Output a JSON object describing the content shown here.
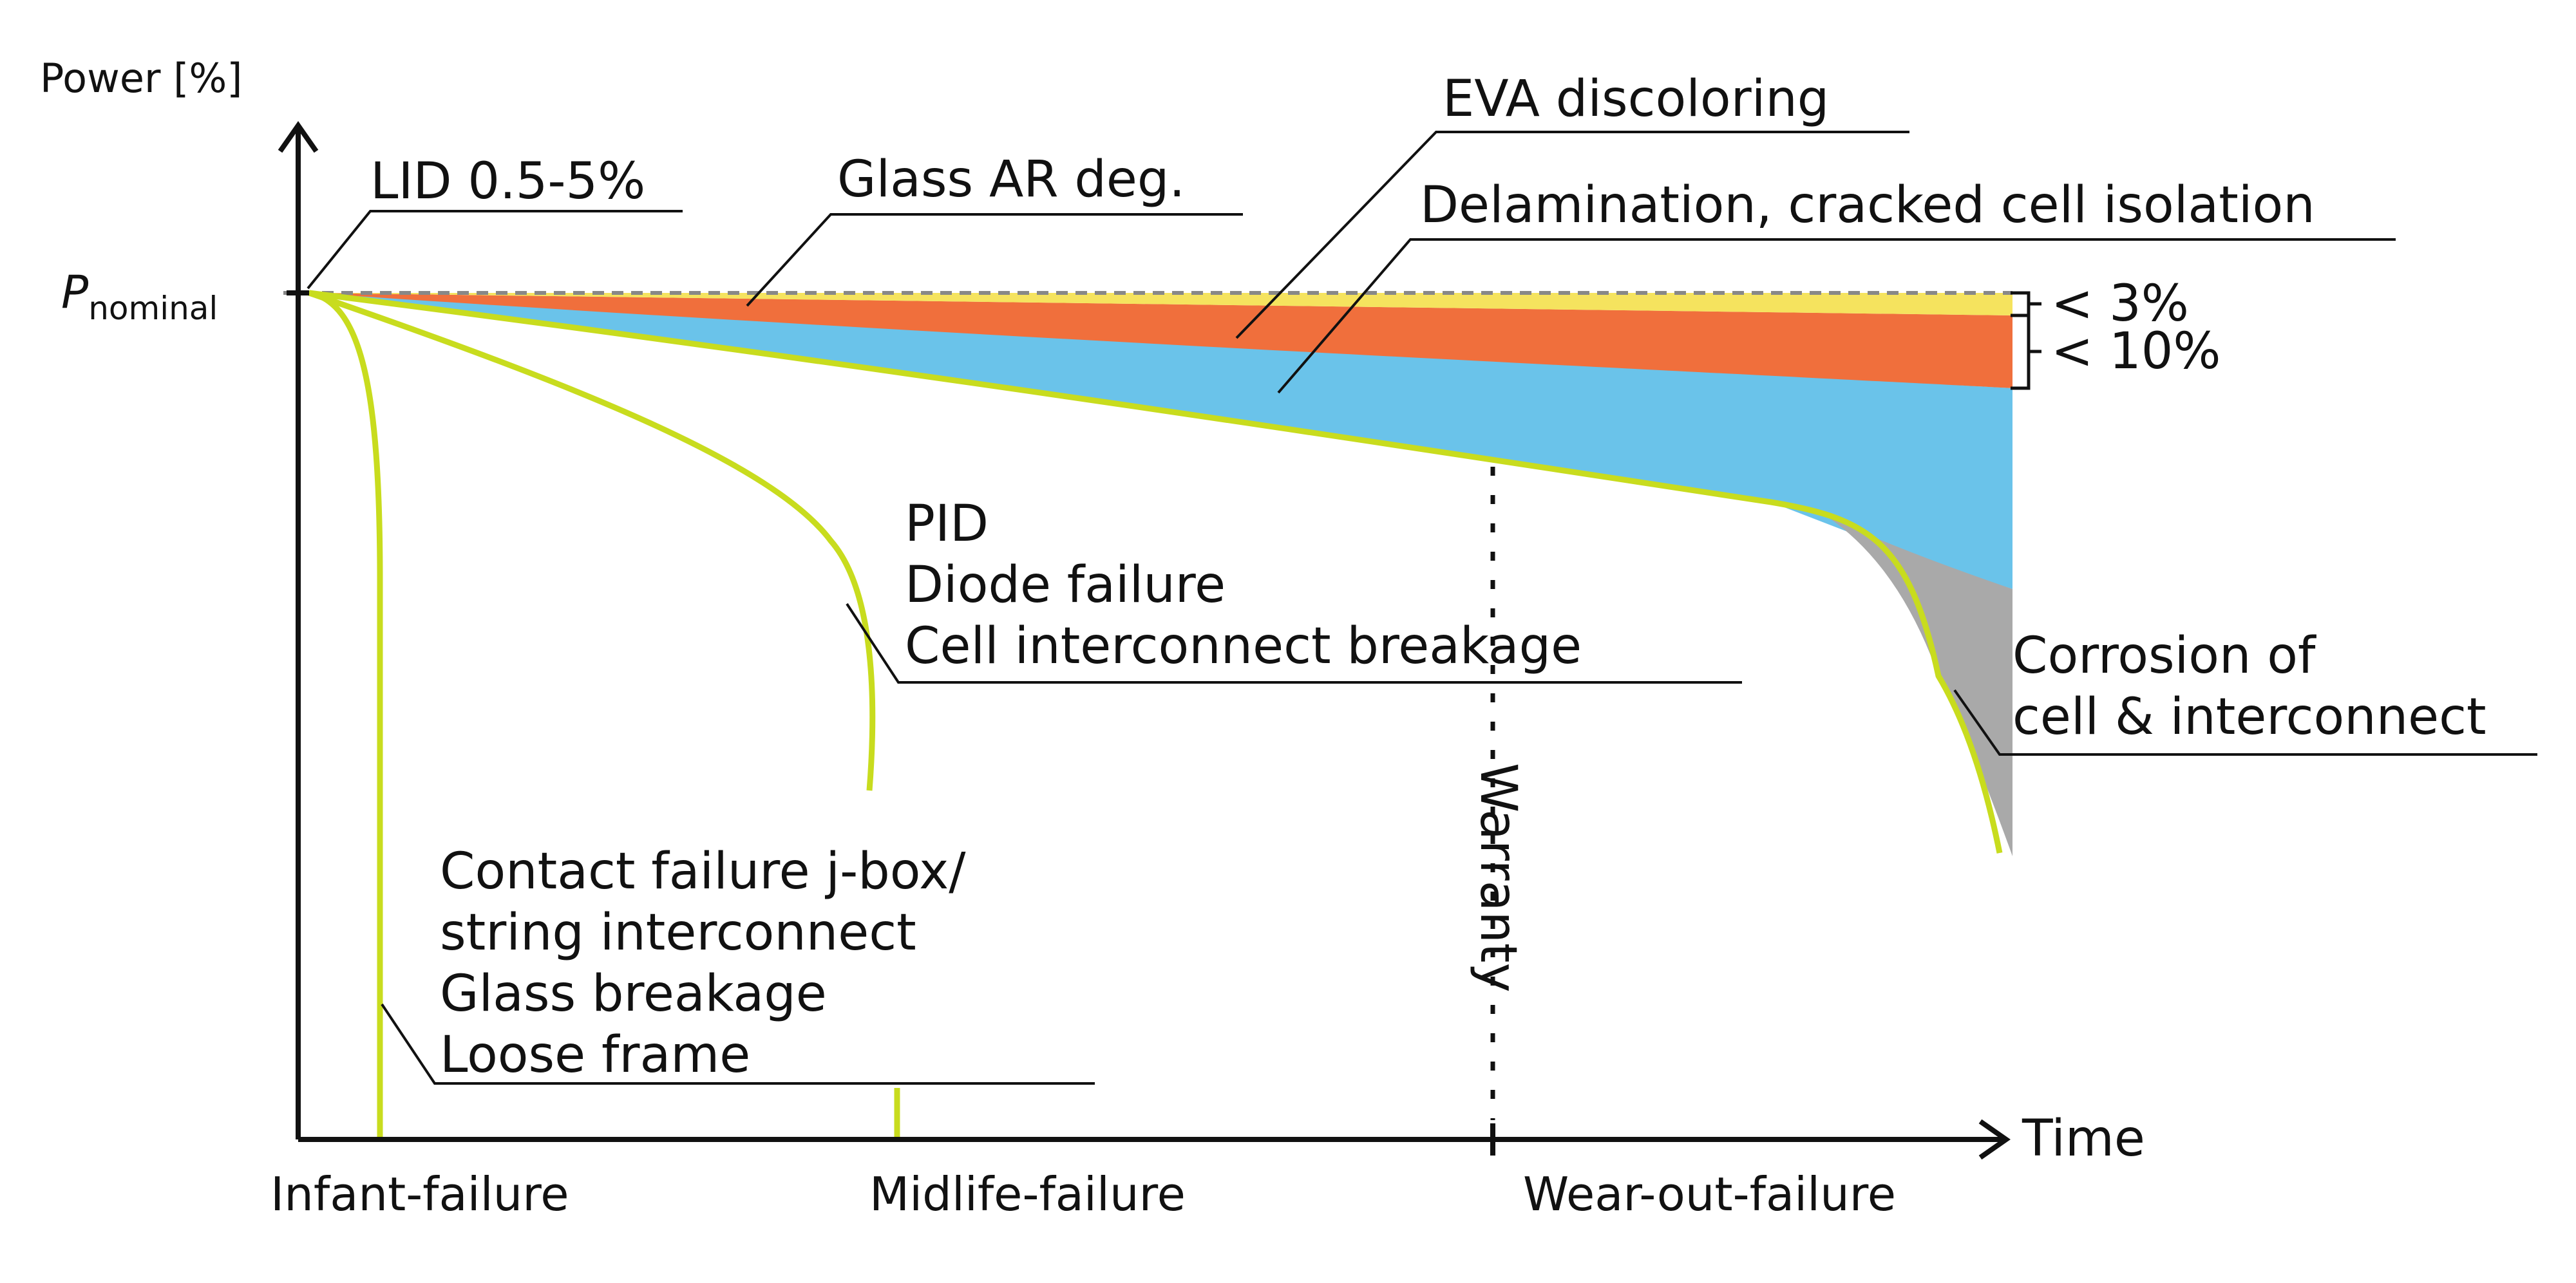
{
  "axes": {
    "y_label": "Power [%]",
    "y_reference_symbol": "P",
    "y_reference_subscript": "nominal",
    "x_label": "Time"
  },
  "phases": [
    "Infant-failure",
    "Midlife-failure",
    "Wear-out-failure"
  ],
  "warranty_label": "Warranty",
  "labels": {
    "lid": "LID 0.5-5%",
    "glass_ar": "Glass AR deg.",
    "eva": "EVA discoloring",
    "delamination": "Delamination, cracked cell isolation",
    "midlife_1": "PID",
    "midlife_2": "Diode failure",
    "midlife_3": "Cell interconnect breakage",
    "infant_1": "Contact failure j-box/",
    "infant_2": "string interconnect",
    "infant_3": "Glass breakage",
    "infant_4": "Loose frame",
    "corrosion_1": "Corrosion of",
    "corrosion_2": "cell & interconnect"
  },
  "brackets": {
    "top": "< 3%",
    "bottom": "< 10%"
  },
  "colors": {
    "axis": "#111111",
    "curve": "#c8dc1e",
    "glass_ar_band": "#f5e35e",
    "eva_band": "#f06f3c",
    "delamination_band": "#6ac3ea",
    "corrosion_band": "#a9a9a9",
    "reference_line": "#888888"
  }
}
